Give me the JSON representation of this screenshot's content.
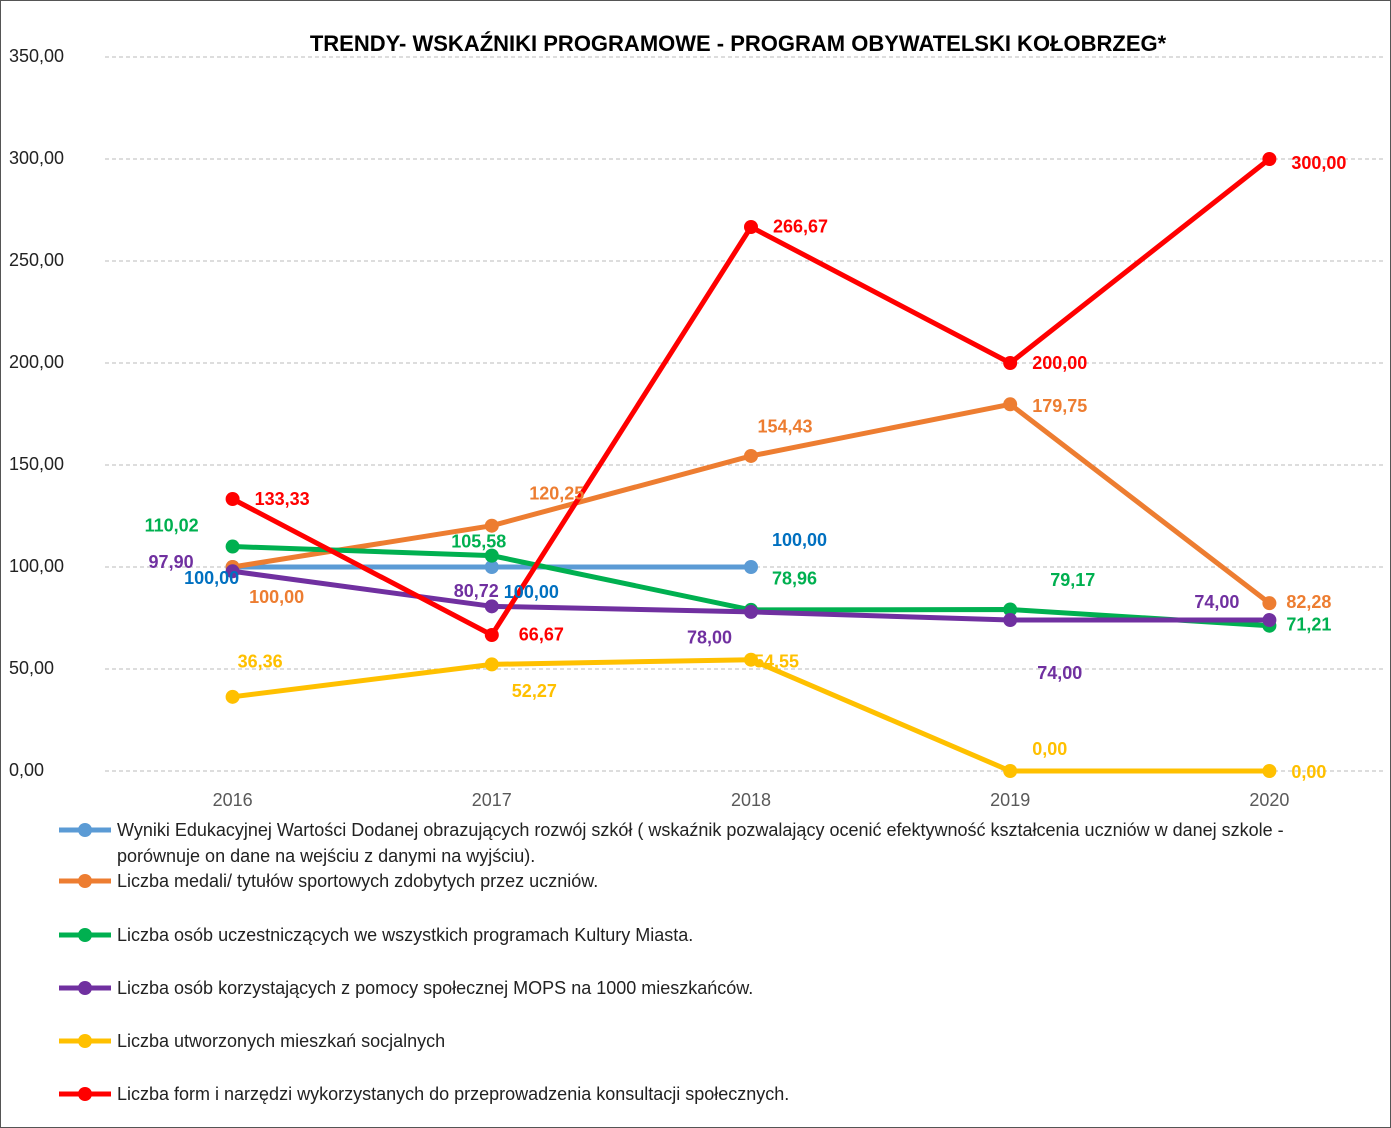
{
  "chart_data": {
    "type": "line",
    "title": "TRENDY- WSKAŹNIKI PROGRAMOWE - PROGRAM OBYWATELSKI KOŁOBRZEG*",
    "categories": [
      "2016",
      "2017",
      "2018",
      "2019",
      "2020"
    ],
    "ylim": [
      0,
      350
    ],
    "yticks": [
      {
        "value": 0,
        "label": "0,00"
      },
      {
        "value": 50,
        "label": "50,00"
      },
      {
        "value": 100,
        "label": "100,00"
      },
      {
        "value": 150,
        "label": "150,00"
      },
      {
        "value": 200,
        "label": "200,00"
      },
      {
        "value": 250,
        "label": "250,00"
      },
      {
        "value": 300,
        "label": "300,00"
      },
      {
        "value": 350,
        "label": "350,00"
      }
    ],
    "grid": true,
    "legend": "bottom",
    "series": [
      {
        "name": "Wyniki Edukacyjnej Wartości Dodanej obrazujących rozwój szkół ( wskaźnik pozwalający ocenić efektywność kształcenia uczniów w danej szkole - porównuje on dane na wejściu z danymi na wyjściu).",
        "color": "#5b9bd5",
        "values": [
          100,
          100,
          100,
          null,
          null
        ],
        "value_labels": [
          "100,00",
          "100,00",
          "100,00",
          null,
          null
        ]
      },
      {
        "name": "Liczba medali/ tytułów sportowych zdobytych przez uczniów.",
        "color": "#ed7d31",
        "values": [
          100,
          120.25,
          154.43,
          179.75,
          82.28
        ],
        "value_labels": [
          "100,00",
          "120,25",
          "154,43",
          "179,75",
          "82,28"
        ]
      },
      {
        "name": "Liczba osób uczestniczących we wszystkich programach Kultury Miasta.",
        "color": "#00b050",
        "values": [
          110.02,
          105.58,
          78.96,
          79.17,
          71.21
        ],
        "value_labels": [
          "110,02",
          "105,58",
          "78,96",
          "79,17",
          "71,21"
        ]
      },
      {
        "name": "Liczba osób korzystających z pomocy społecznej MOPS na 1000 mieszkańców.",
        "color": "#7030a0",
        "values": [
          97.9,
          80.72,
          78.0,
          74.0,
          74.0
        ],
        "value_labels": [
          "97,90",
          "80,72",
          "78,00",
          "74,00",
          "74,00"
        ]
      },
      {
        "name": "Liczba utworzonych mieszkań socjalnych",
        "color": "#ffc000",
        "values": [
          36.36,
          52.27,
          54.55,
          0,
          0
        ],
        "value_labels": [
          "36,36",
          "52,27",
          "54,55",
          "0,00",
          "0,00"
        ]
      },
      {
        "name": "Liczba form i narzędzi wykorzystanych do przeprowadzenia konsultacji społecznych.",
        "color": "#ff0000",
        "values": [
          133.33,
          66.67,
          266.67,
          200,
          300
        ],
        "value_labels": [
          "133,33",
          "66,67",
          "266,67",
          "200,00",
          "300,00"
        ]
      }
    ]
  }
}
